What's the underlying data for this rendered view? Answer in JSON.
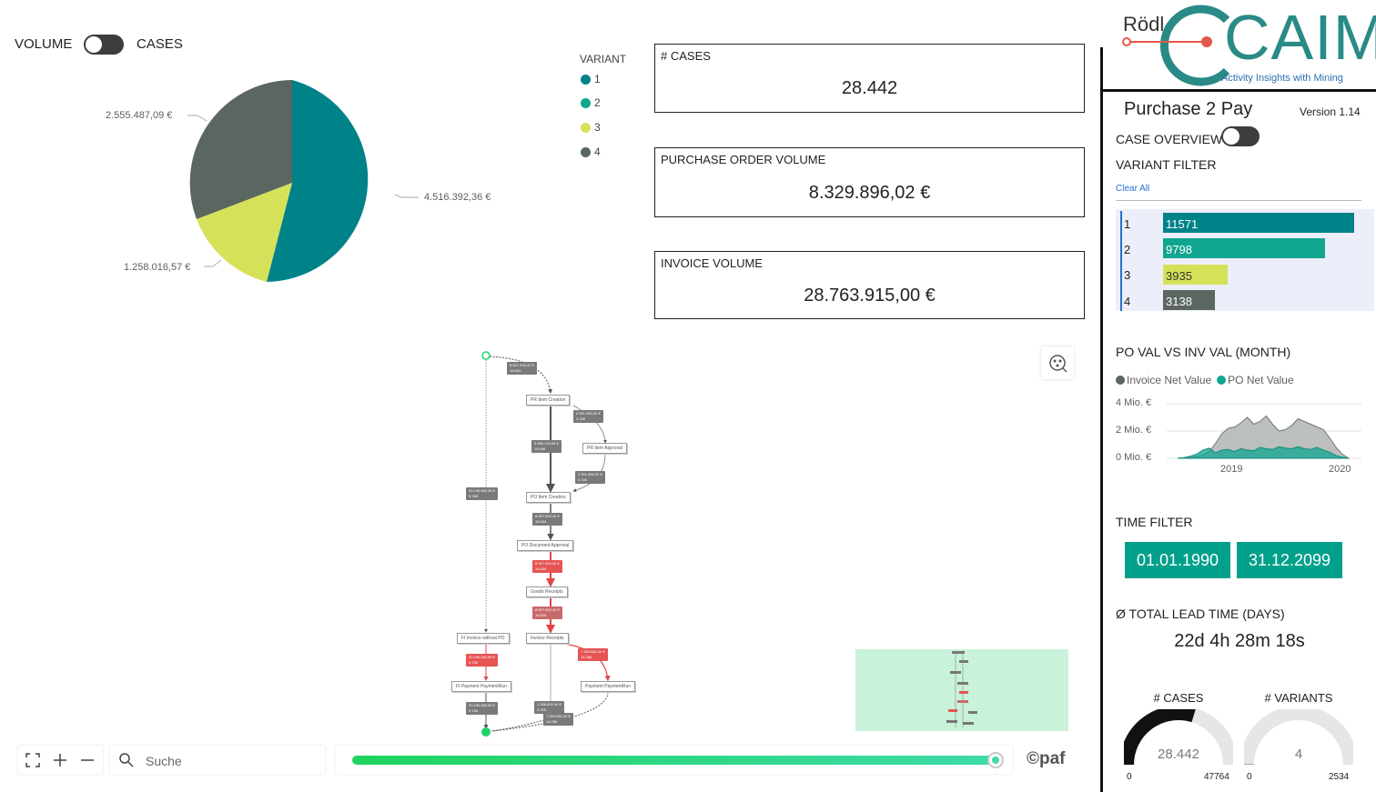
{
  "toggle": {
    "left_label": "VOLUME",
    "right_label": "CASES"
  },
  "pie": {
    "labels": [
      "4.516.392,36 €",
      "1.258.016,57 €",
      "2.555.487,09 €"
    ]
  },
  "legend": {
    "title": "VARIANT",
    "items": [
      {
        "label": "1",
        "color": "#008289"
      },
      {
        "label": "2",
        "color": "#10a690"
      },
      {
        "label": "3",
        "color": "#d6e15a"
      },
      {
        "label": "4",
        "color": "#5b6660"
      }
    ]
  },
  "kpis": [
    {
      "title": "# CASES",
      "value": "28.442"
    },
    {
      "title": "PURCHASE ORDER VOLUME",
      "value": "8.329.896,02 €"
    },
    {
      "title": "INVOICE VOLUME",
      "value": "28.763.915,00 €"
    }
  ],
  "process_map": {
    "nodes": {
      "pr_item_creation": "PR Item Creation",
      "pr_item_approval": "PR Item Approval",
      "po_item_creation": "PO Item Creation",
      "po_document_approval": "PO Document Approval",
      "goods_receipts": "Goods Receipts",
      "invoice_receipts": "Invoice Receipts",
      "fi_invoice_without_po": "FI Invoice without PO",
      "fi_payment_paymentrun": "FI Payment PaymentRun",
      "payment_paymentrun": "Payment PaymentRun"
    },
    "badges": {
      "b1": "8.507.900,42 €",
      "b1n": "16.634",
      "b2": "2.591.560,32 €",
      "b2n": "3.156",
      "b3": "5.865.102,63 €",
      "b3n": "15.596",
      "b4": "2.591.560,32 €",
      "b4n": "3.156",
      "b5": "20.196.862,58 €",
      "b5n": "9.768",
      "b6": "8.507.900,42 €",
      "b6n": "16.634",
      "b7": "8.507.900,42 €",
      "b7n": "16.634",
      "b8": "8.507.900,42 €",
      "b8n": "16.634",
      "b9": "7.250.680,42 €",
      "b9n": "14.286",
      "b10": "20.196.862,58 €",
      "b10n": "9.768",
      "b11": "20.196.862,58 €",
      "b11n": "9.768",
      "b12": "1.306.602,30 €",
      "b12n": "2.035",
      "b13": "7.250.680,42 €",
      "b13n": "14.286"
    }
  },
  "bottom_bar": {
    "search_placeholder": "Suche",
    "brand": "©paf",
    "slider_value_pct": 100
  },
  "header": {
    "logo_small": "Rödl",
    "logo_big": "CAIM",
    "logo_tagline": "Activity Insights with Mining",
    "app_title": "Purchase 2 Pay",
    "version": "Version 1.14"
  },
  "case_overview_label": "CASE OVERVIEW",
  "variant_filter": {
    "title": "VARIANT FILTER",
    "clear_label": "Clear All",
    "rows": [
      {
        "label": "1",
        "value": "11571",
        "num": 11571,
        "color": "#008289"
      },
      {
        "label": "2",
        "value": "9798",
        "num": 9798,
        "color": "#10a690"
      },
      {
        "label": "3",
        "value": "3935",
        "num": 3935,
        "color": "#d6e15a"
      },
      {
        "label": "4",
        "value": "3138",
        "num": 3138,
        "color": "#5b6660"
      }
    ]
  },
  "area_chart_title": "PO VAL VS INV VAL (MONTH)",
  "chart_data": {
    "type": "area",
    "title": "PO VAL VS INV VAL (MONTH)",
    "legend": [
      "Invoice Net Value",
      "PO Net Value"
    ],
    "y_ticks": [
      "4 Mio. €",
      "2 Mio. €",
      "0 Mio. €"
    ],
    "x_ticks": [
      "2019",
      "2020"
    ],
    "ylim": [
      0,
      4000000
    ],
    "x": [
      0,
      1,
      2,
      3,
      4,
      5,
      6,
      7,
      8,
      9,
      10,
      11,
      12,
      13,
      14,
      15,
      16,
      17,
      18,
      19,
      20,
      21,
      22,
      23,
      24,
      25,
      26,
      27
    ],
    "series": [
      {
        "name": "Invoice Net Value",
        "color": "#8f9594",
        "values": [
          0,
          20000,
          60000,
          120000,
          250000,
          500000,
          1100000,
          1800000,
          2200000,
          2300000,
          2600000,
          3000000,
          2500000,
          2700000,
          3100000,
          2500000,
          2000000,
          2100000,
          2400000,
          2900000,
          2700000,
          2500000,
          2300000,
          2100000,
          1500000,
          800000,
          300000,
          0
        ]
      },
      {
        "name": "PO Net Value",
        "color": "#10a690",
        "values": [
          0,
          50000,
          150000,
          300000,
          600000,
          750000,
          400000,
          600000,
          650000,
          500000,
          700000,
          600000,
          550000,
          800000,
          700000,
          650000,
          850000,
          750000,
          700000,
          850000,
          700000,
          650000,
          800000,
          600000,
          450000,
          200000,
          80000,
          0
        ]
      }
    ]
  },
  "time_filter": {
    "title": "TIME FILTER",
    "from": "01.01.1990",
    "to": "31.12.2099"
  },
  "lead_time": {
    "title": "Ø TOTAL LEAD TIME (DAYS)",
    "value": "22d 4h 28m 18s"
  },
  "gauges": [
    {
      "title": "# CASES",
      "value": "28.442",
      "min": "0",
      "max": "47764",
      "fraction": 0.5955
    },
    {
      "title": "# VARIANTS",
      "value": "4",
      "min": "0",
      "max": "2534",
      "fraction": 0.0016
    }
  ]
}
